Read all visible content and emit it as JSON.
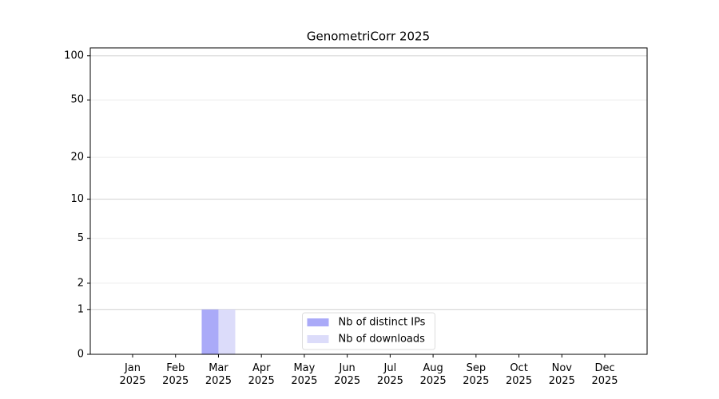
{
  "chart_data": {
    "type": "bar",
    "title": "GenometriCorr 2025",
    "categories": [
      "Jan 2025",
      "Feb 2025",
      "Mar 2025",
      "Apr 2025",
      "May 2025",
      "Jun 2025",
      "Jul 2025",
      "Aug 2025",
      "Sep 2025",
      "Oct 2025",
      "Nov 2025",
      "Dec 2025"
    ],
    "series": [
      {
        "name": "Nb of distinct IPs",
        "color": "#aaaaf8",
        "values": [
          0,
          0,
          1,
          0,
          0,
          0,
          0,
          0,
          0,
          0,
          0,
          0
        ]
      },
      {
        "name": "Nb of downloads",
        "color": "#dcdcfa",
        "values": [
          0,
          0,
          1,
          0,
          0,
          0,
          0,
          0,
          0,
          0,
          0,
          0
        ]
      }
    ],
    "yscale": "log1p",
    "ylim": [
      0,
      113
    ],
    "yticks": [
      0,
      1,
      2,
      5,
      10,
      20,
      50,
      100
    ],
    "grid": true,
    "legend": "lower center"
  }
}
